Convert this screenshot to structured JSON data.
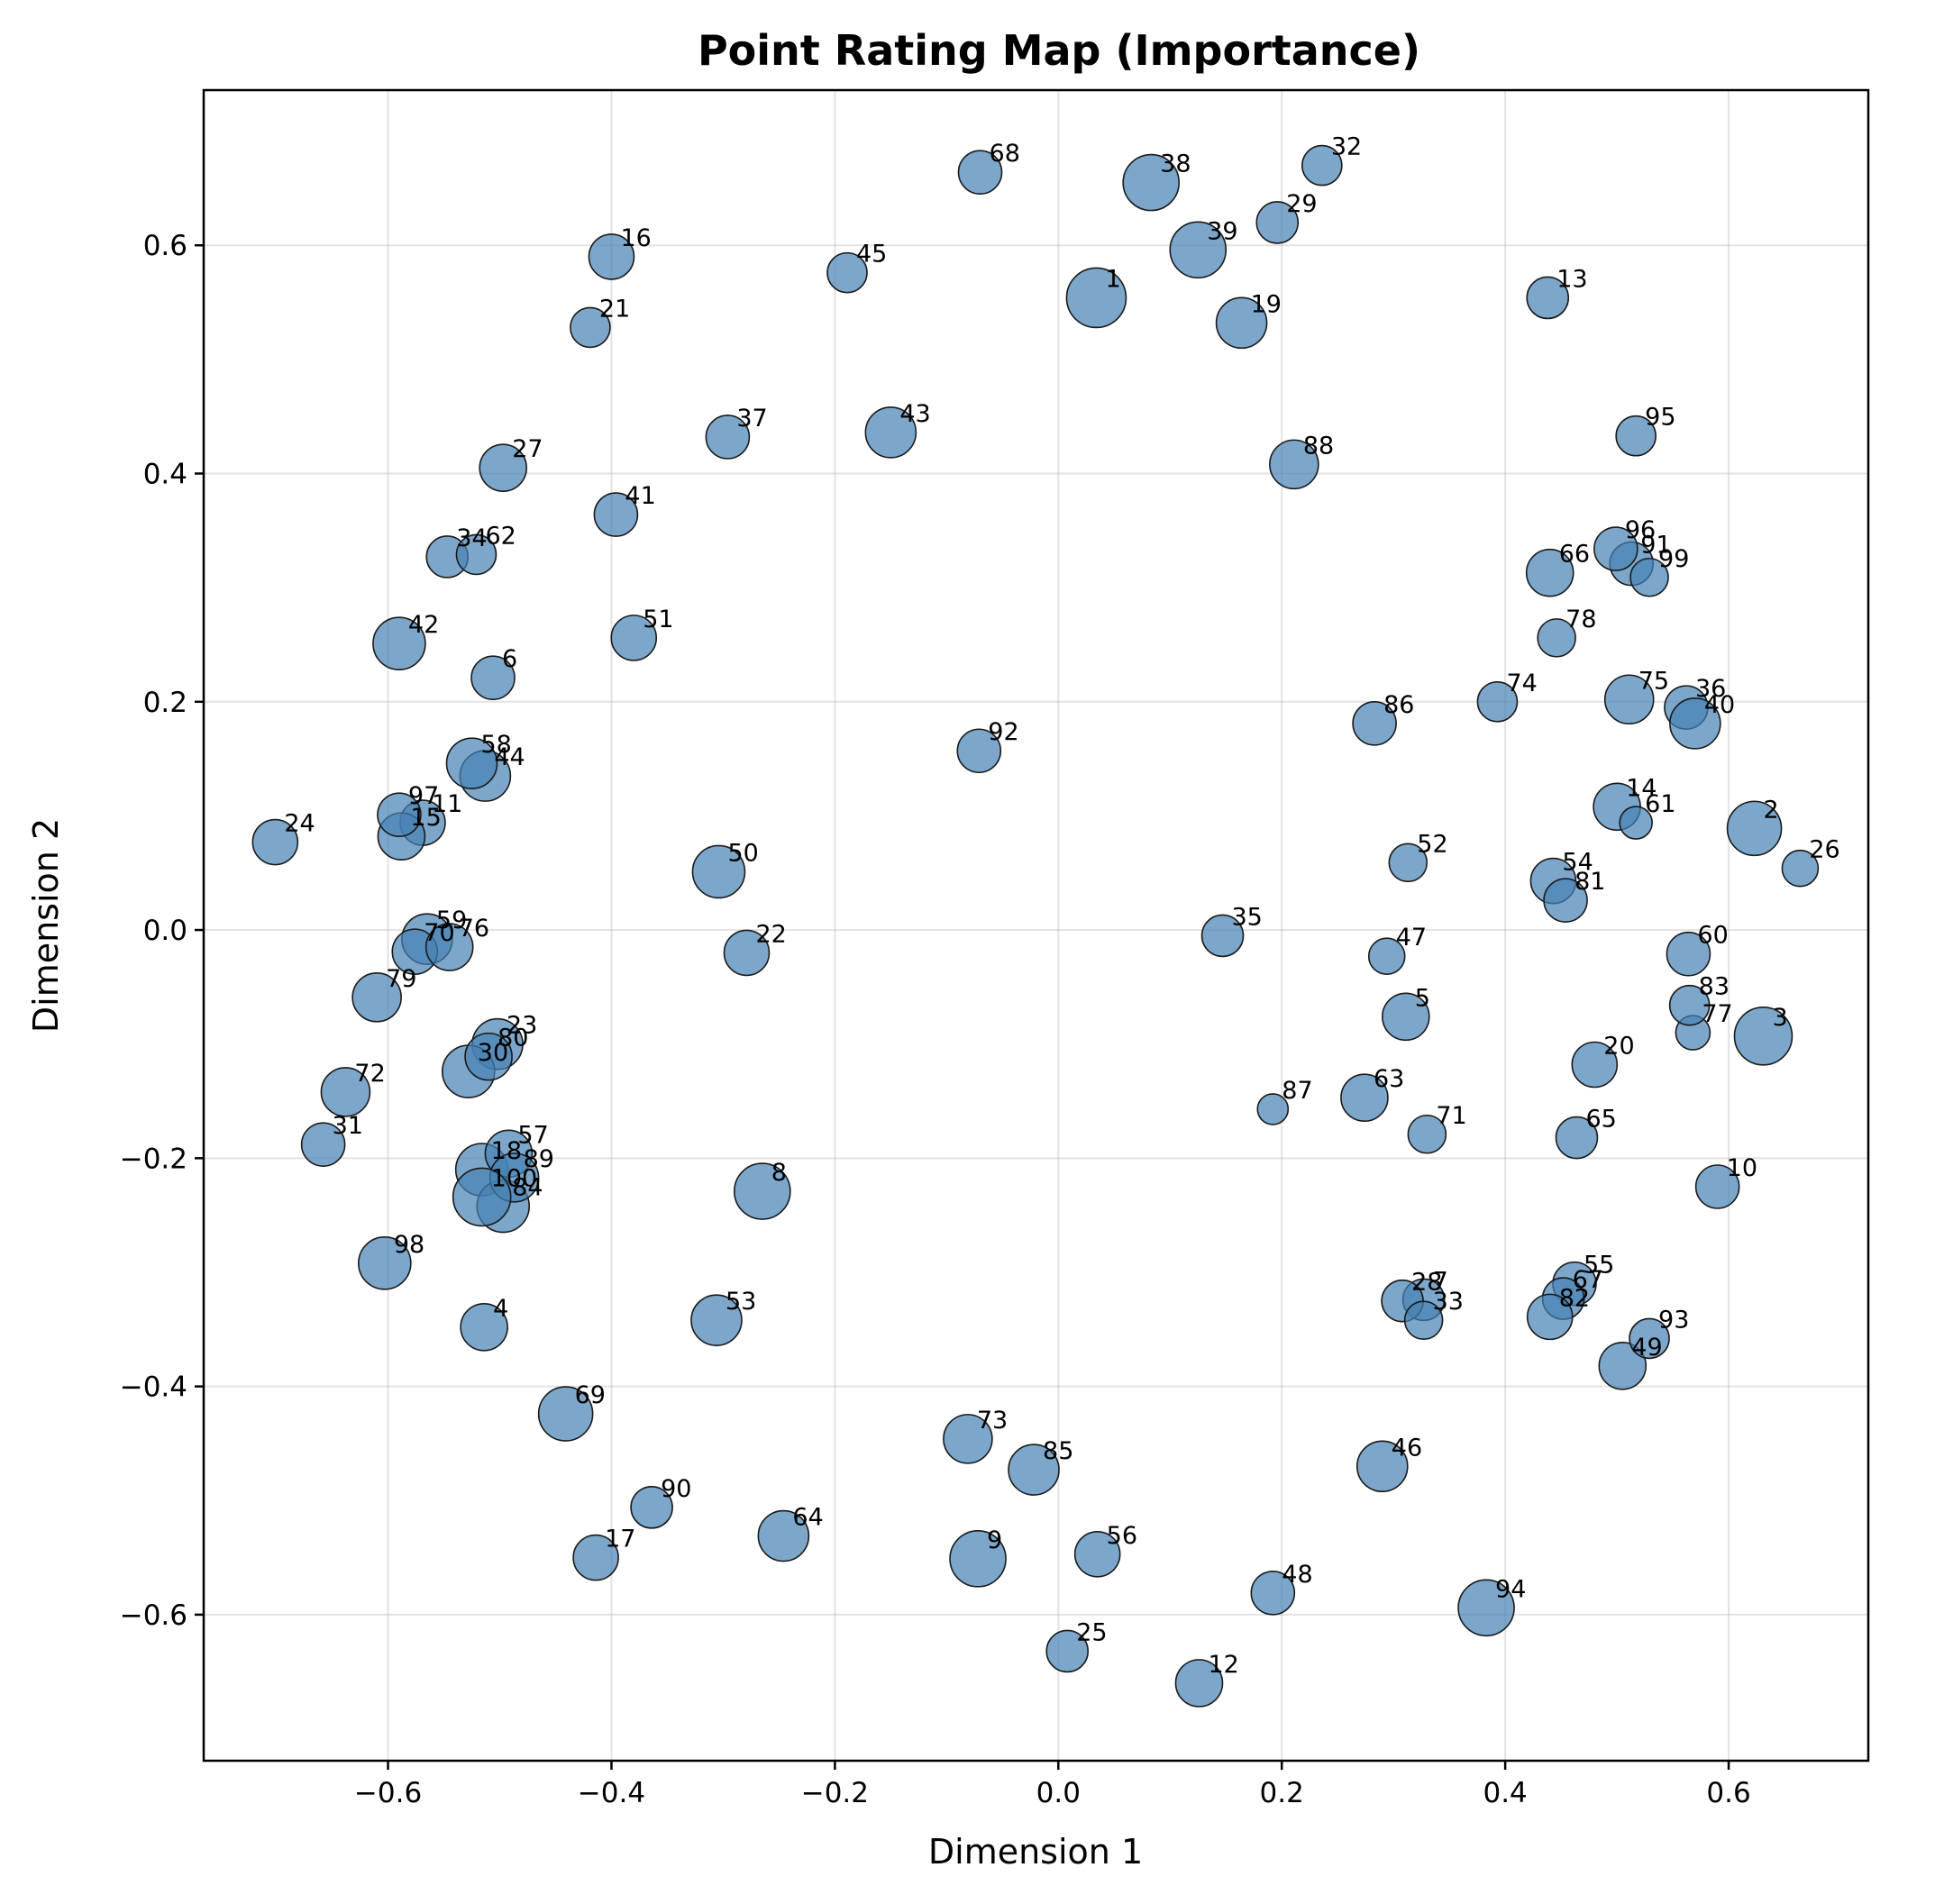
{
  "chart_data": {
    "type": "scatter",
    "title": "Point Rating Map (Importance)",
    "xlabel": "Dimension 1",
    "ylabel": "Dimension 2",
    "xlim": [
      -0.765,
      0.725
    ],
    "ylim": [
      -0.728,
      0.736
    ],
    "xticks": [
      -0.6,
      -0.4,
      -0.2,
      0.0,
      0.2,
      0.4,
      0.6
    ],
    "yticks": [
      -0.6,
      -0.4,
      -0.2,
      0.0,
      0.2,
      0.4,
      0.6
    ],
    "xtick_labels": [
      "−0.6",
      "−0.4",
      "−0.2",
      "0.0",
      "0.2",
      "0.4",
      "0.6"
    ],
    "ytick_labels": [
      "−0.6",
      "−0.4",
      "−0.2",
      "0.0",
      "0.2",
      "0.4",
      "0.6"
    ],
    "grid": true,
    "marker_color": "#4682b4",
    "marker_edge_color": "#1a1a1a",
    "size_encodes": "importance rating (relative, 0-1)",
    "points": [
      {
        "label": "1",
        "x": 0.034,
        "y": 0.554,
        "size": 0.95
      },
      {
        "label": "2",
        "x": 0.623,
        "y": 0.089,
        "size": 0.8
      },
      {
        "label": "3",
        "x": 0.631,
        "y": -0.093,
        "size": 0.9
      },
      {
        "label": "4",
        "x": -0.514,
        "y": -0.348,
        "size": 0.6
      },
      {
        "label": "5",
        "x": 0.311,
        "y": -0.076,
        "size": 0.6
      },
      {
        "label": "6",
        "x": -0.506,
        "y": 0.221,
        "size": 0.5
      },
      {
        "label": "7",
        "x": 0.327,
        "y": -0.324,
        "size": 0.45
      },
      {
        "label": "8",
        "x": -0.265,
        "y": -0.229,
        "size": 0.85
      },
      {
        "label": "9",
        "x": -0.072,
        "y": -0.551,
        "size": 0.85
      },
      {
        "label": "10",
        "x": 0.59,
        "y": -0.225,
        "size": 0.5
      },
      {
        "label": "11",
        "x": -0.569,
        "y": 0.094,
        "size": 0.55
      },
      {
        "label": "12",
        "x": 0.126,
        "y": -0.66,
        "size": 0.6
      },
      {
        "label": "13",
        "x": 0.438,
        "y": 0.554,
        "size": 0.45
      },
      {
        "label": "14",
        "x": 0.5,
        "y": 0.108,
        "size": 0.6
      },
      {
        "label": "15",
        "x": -0.588,
        "y": 0.082,
        "size": 0.6
      },
      {
        "label": "16",
        "x": -0.4,
        "y": 0.59,
        "size": 0.55
      },
      {
        "label": "17",
        "x": -0.414,
        "y": -0.55,
        "size": 0.55
      },
      {
        "label": "18",
        "x": -0.516,
        "y": -0.21,
        "size": 0.75
      },
      {
        "label": "19",
        "x": 0.164,
        "y": 0.532,
        "size": 0.7
      },
      {
        "label": "20",
        "x": 0.48,
        "y": -0.118,
        "size": 0.55
      },
      {
        "label": "21",
        "x": -0.419,
        "y": 0.528,
        "size": 0.4
      },
      {
        "label": "22",
        "x": -0.279,
        "y": -0.02,
        "size": 0.55
      },
      {
        "label": "23",
        "x": -0.502,
        "y": -0.1,
        "size": 0.7
      },
      {
        "label": "24",
        "x": -0.701,
        "y": 0.077,
        "size": 0.55
      },
      {
        "label": "25",
        "x": 0.008,
        "y": -0.632,
        "size": 0.45
      },
      {
        "label": "26",
        "x": 0.664,
        "y": 0.054,
        "size": 0.3
      },
      {
        "label": "27",
        "x": -0.497,
        "y": 0.405,
        "size": 0.6
      },
      {
        "label": "28",
        "x": 0.308,
        "y": -0.325,
        "size": 0.45
      },
      {
        "label": "29",
        "x": 0.196,
        "y": 0.62,
        "size": 0.45
      },
      {
        "label": "30",
        "x": -0.528,
        "y": -0.124,
        "size": 0.75
      },
      {
        "label": "31",
        "x": -0.658,
        "y": -0.188,
        "size": 0.5
      },
      {
        "label": "32",
        "x": 0.236,
        "y": 0.67,
        "size": 0.4
      },
      {
        "label": "33",
        "x": 0.327,
        "y": -0.342,
        "size": 0.35
      },
      {
        "label": "34",
        "x": -0.547,
        "y": 0.327,
        "size": 0.45
      },
      {
        "label": "35",
        "x": 0.147,
        "y": -0.005,
        "size": 0.45
      },
      {
        "label": "36",
        "x": 0.562,
        "y": 0.195,
        "size": 0.5
      },
      {
        "label": "37",
        "x": -0.296,
        "y": 0.432,
        "size": 0.5
      },
      {
        "label": "38",
        "x": 0.083,
        "y": 0.655,
        "size": 0.85
      },
      {
        "label": "39",
        "x": 0.125,
        "y": 0.596,
        "size": 0.85
      },
      {
        "label": "40",
        "x": 0.57,
        "y": 0.181,
        "size": 0.7
      },
      {
        "label": "41",
        "x": -0.396,
        "y": 0.364,
        "size": 0.5
      },
      {
        "label": "42",
        "x": -0.59,
        "y": 0.251,
        "size": 0.75
      },
      {
        "label": "43",
        "x": -0.15,
        "y": 0.436,
        "size": 0.7
      },
      {
        "label": "44",
        "x": -0.513,
        "y": 0.135,
        "size": 0.7
      },
      {
        "label": "45",
        "x": -0.189,
        "y": 0.576,
        "size": 0.4
      },
      {
        "label": "46",
        "x": 0.29,
        "y": -0.47,
        "size": 0.7
      },
      {
        "label": "47",
        "x": 0.294,
        "y": -0.023,
        "size": 0.3
      },
      {
        "label": "48",
        "x": 0.192,
        "y": -0.581,
        "size": 0.5
      },
      {
        "label": "49",
        "x": 0.505,
        "y": -0.382,
        "size": 0.6
      },
      {
        "label": "50",
        "x": -0.304,
        "y": 0.051,
        "size": 0.75
      },
      {
        "label": "51",
        "x": -0.38,
        "y": 0.256,
        "size": 0.55
      },
      {
        "label": "52",
        "x": 0.313,
        "y": 0.059,
        "size": 0.35
      },
      {
        "label": "53",
        "x": -0.306,
        "y": -0.342,
        "size": 0.7
      },
      {
        "label": "54",
        "x": 0.443,
        "y": 0.043,
        "size": 0.55
      },
      {
        "label": "55",
        "x": 0.462,
        "y": -0.31,
        "size": 0.5
      },
      {
        "label": "56",
        "x": 0.035,
        "y": -0.547,
        "size": 0.55
      },
      {
        "label": "57",
        "x": -0.492,
        "y": -0.196,
        "size": 0.6
      },
      {
        "label": "58",
        "x": -0.525,
        "y": 0.146,
        "size": 0.7
      },
      {
        "label": "59",
        "x": -0.565,
        "y": -0.008,
        "size": 0.7
      },
      {
        "label": "60",
        "x": 0.564,
        "y": -0.021,
        "size": 0.5
      },
      {
        "label": "61",
        "x": 0.517,
        "y": 0.094,
        "size": 0.2
      },
      {
        "label": "62",
        "x": -0.521,
        "y": 0.329,
        "size": 0.4
      },
      {
        "label": "63",
        "x": 0.274,
        "y": -0.147,
        "size": 0.6
      },
      {
        "label": "64",
        "x": -0.246,
        "y": -0.531,
        "size": 0.7
      },
      {
        "label": "65",
        "x": 0.464,
        "y": -0.182,
        "size": 0.45
      },
      {
        "label": "66",
        "x": 0.44,
        "y": 0.313,
        "size": 0.6
      },
      {
        "label": "67",
        "x": 0.452,
        "y": -0.323,
        "size": 0.45
      },
      {
        "label": "68",
        "x": -0.07,
        "y": 0.664,
        "size": 0.5
      },
      {
        "label": "69",
        "x": -0.441,
        "y": -0.424,
        "size": 0.8
      },
      {
        "label": "70",
        "x": -0.576,
        "y": -0.019,
        "size": 0.55
      },
      {
        "label": "71",
        "x": 0.33,
        "y": -0.179,
        "size": 0.35
      },
      {
        "label": "72",
        "x": -0.638,
        "y": -0.142,
        "size": 0.65
      },
      {
        "label": "73",
        "x": -0.081,
        "y": -0.446,
        "size": 0.65
      },
      {
        "label": "74",
        "x": 0.393,
        "y": 0.2,
        "size": 0.4
      },
      {
        "label": "75",
        "x": 0.511,
        "y": 0.202,
        "size": 0.65
      },
      {
        "label": "76",
        "x": -0.545,
        "y": -0.015,
        "size": 0.6
      },
      {
        "label": "77",
        "x": 0.568,
        "y": -0.09,
        "size": 0.25
      },
      {
        "label": "78",
        "x": 0.446,
        "y": 0.256,
        "size": 0.35
      },
      {
        "label": "79",
        "x": -0.61,
        "y": -0.059,
        "size": 0.65
      },
      {
        "label": "80",
        "x": -0.51,
        "y": -0.111,
        "size": 0.6
      },
      {
        "label": "81",
        "x": 0.454,
        "y": 0.026,
        "size": 0.5
      },
      {
        "label": "82",
        "x": 0.44,
        "y": -0.339,
        "size": 0.55
      },
      {
        "label": "83",
        "x": 0.565,
        "y": -0.066,
        "size": 0.4
      },
      {
        "label": "84",
        "x": -0.497,
        "y": -0.242,
        "size": 0.75
      },
      {
        "label": "85",
        "x": -0.022,
        "y": -0.473,
        "size": 0.7
      },
      {
        "label": "86",
        "x": 0.283,
        "y": 0.181,
        "size": 0.5
      },
      {
        "label": "87",
        "x": 0.192,
        "y": -0.157,
        "size": 0.15
      },
      {
        "label": "88",
        "x": 0.211,
        "y": 0.408,
        "size": 0.65
      },
      {
        "label": "89",
        "x": -0.487,
        "y": -0.217,
        "size": 0.65
      },
      {
        "label": "90",
        "x": -0.364,
        "y": -0.506,
        "size": 0.45
      },
      {
        "label": "91",
        "x": 0.513,
        "y": 0.321,
        "size": 0.5
      },
      {
        "label": "92",
        "x": -0.071,
        "y": 0.157,
        "size": 0.5
      },
      {
        "label": "93",
        "x": 0.529,
        "y": -0.358,
        "size": 0.4
      },
      {
        "label": "94",
        "x": 0.383,
        "y": -0.594,
        "size": 0.85
      },
      {
        "label": "95",
        "x": 0.517,
        "y": 0.433,
        "size": 0.4
      },
      {
        "label": "96",
        "x": 0.499,
        "y": 0.334,
        "size": 0.5
      },
      {
        "label": "97",
        "x": -0.59,
        "y": 0.101,
        "size": 0.5
      },
      {
        "label": "98",
        "x": -0.603,
        "y": -0.292,
        "size": 0.75
      },
      {
        "label": "99",
        "x": 0.529,
        "y": 0.309,
        "size": 0.35
      },
      {
        "label": "100",
        "x": -0.516,
        "y": -0.234,
        "size": 0.9
      }
    ]
  }
}
